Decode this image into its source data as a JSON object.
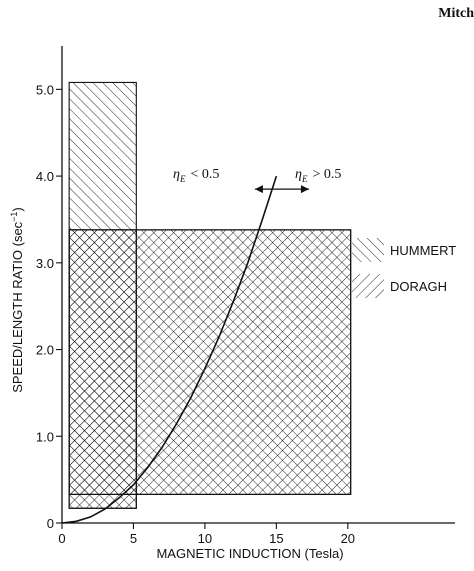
{
  "running_head": "Mitch",
  "chart_data": {
    "type": "area",
    "xlabel": "MAGNETIC INDUCTION (Tesla)",
    "ylabel": "SPEED/LENGTH RATIO (sec",
    "ylabel_sup": "−1",
    "ylabel_close": ")",
    "xlim": [
      0,
      27.5
    ],
    "ylim": [
      0,
      5.5
    ],
    "x_ticks": [
      0,
      5,
      10,
      15,
      20
    ],
    "x_tick_labels": [
      "0",
      "5",
      "10",
      "15",
      "20"
    ],
    "y_ticks": [
      0,
      1,
      2,
      3,
      4,
      5
    ],
    "y_tick_labels": [
      "0",
      "1.0",
      "2.0",
      "3.0",
      "4.0",
      "5.0"
    ],
    "grid": false,
    "legend_position": "right",
    "regions": [
      {
        "name": "HUMMERT",
        "hatch": "forward",
        "x": [
          0.5,
          5.2
        ],
        "y": [
          0.17,
          5.08
        ]
      },
      {
        "name": "HUMMERT",
        "hatch": "forward",
        "x": [
          0.5,
          20.2
        ],
        "y": [
          0.33,
          3.38
        ]
      },
      {
        "name": "DORAGH",
        "hatch": "backward",
        "x": [
          0.5,
          5.2
        ],
        "y": [
          0.17,
          3.38
        ]
      },
      {
        "name": "DORAGH",
        "hatch": "backward",
        "x": [
          0.5,
          20.2
        ],
        "y": [
          0.33,
          3.38
        ]
      }
    ],
    "legend": [
      {
        "label": "HUMMERT",
        "hatch": "forward"
      },
      {
        "label": "DORAGH",
        "hatch": "backward"
      }
    ],
    "curve": {
      "x": [
        0,
        1,
        2,
        3,
        4,
        5,
        6,
        7,
        8,
        9,
        10,
        11,
        12,
        13,
        14,
        15
      ],
      "y": [
        0,
        0.02,
        0.07,
        0.16,
        0.29,
        0.44,
        0.64,
        0.87,
        1.14,
        1.44,
        1.78,
        2.15,
        2.56,
        3.0,
        3.49,
        4.0
      ]
    },
    "annotation": {
      "left": {
        "eta": "η",
        "sub": "E",
        "rel": "< 0.5"
      },
      "right": {
        "eta": "η",
        "sub": "E",
        "rel": "> 0.5"
      },
      "x": 15.6,
      "y": 3.85
    }
  }
}
